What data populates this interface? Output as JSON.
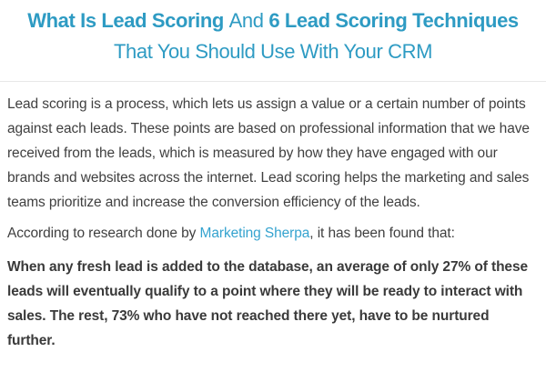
{
  "page": {
    "background_color": "#ffffff"
  },
  "title": {
    "color": "#2e9bc3",
    "line1": {
      "segments": [
        {
          "text": "What Is Lead Scoring ",
          "bold": true
        },
        {
          "text": "And ",
          "bold": false
        },
        {
          "text": "6 Lead Scoring Techniques",
          "bold": true
        }
      ]
    },
    "line2": "That You Should Use With Your CRM"
  },
  "divider": {
    "color": "#e7e7e7"
  },
  "article": {
    "text_color": "#404040",
    "paragraph_intro": "Lead scoring is a process, which lets us assign a value or a certain number of points against each leads. These points are based on professional information that we have received from the leads, which is measured by how they have engaged with our brands and websites across the internet. Lead scoring helps the marketing and sales teams prioritize and increase the conversion efficiency of the leads.",
    "paragraph_research": {
      "before_link": "According to research done by ",
      "link_text": "Marketing Sherpa",
      "after_link": ", it has been found that:",
      "link_color": "#35a3cf"
    },
    "paragraph_statistic": "When any fresh lead is added to the database, an average of only 27% of these leads will eventually qualify to a point where they will be ready to interact with sales. The rest, 73% who have not reached there yet, have to be nurtured further."
  }
}
